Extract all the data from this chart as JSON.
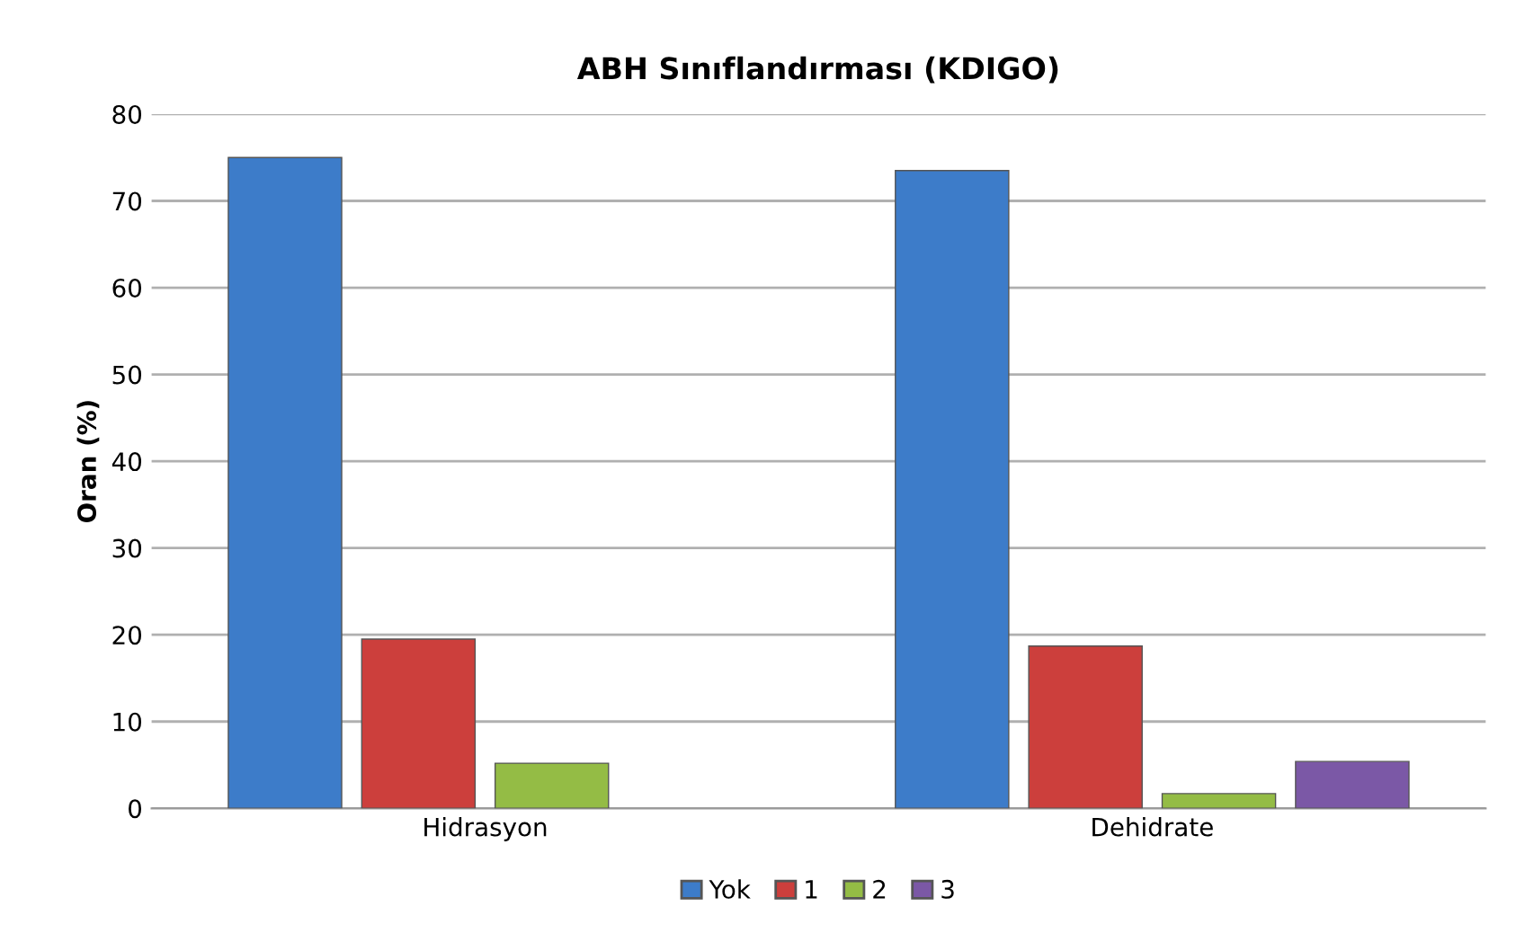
{
  "chart_data": {
    "type": "bar",
    "title": "ABH Sınıflandırması (KDIGO)",
    "ylabel": "Oran (%)",
    "categories": [
      "Hidrasyon",
      "Dehidrate"
    ],
    "series": [
      {
        "name": "Yok",
        "color": "#3d7cc9",
        "values": [
          75,
          73.5
        ]
      },
      {
        "name": "1",
        "color": "#cc3f3c",
        "values": [
          19.5,
          18.7
        ]
      },
      {
        "name": "2",
        "color": "#94bc45",
        "values": [
          5.2,
          1.7
        ]
      },
      {
        "name": "3",
        "color": "#7b58a6",
        "values": [
          null,
          5.4
        ]
      }
    ],
    "ylim": [
      0,
      80
    ],
    "yticks": [
      0,
      10,
      20,
      30,
      40,
      50,
      60,
      70,
      80
    ],
    "grid": "y",
    "legend": "bottom"
  }
}
